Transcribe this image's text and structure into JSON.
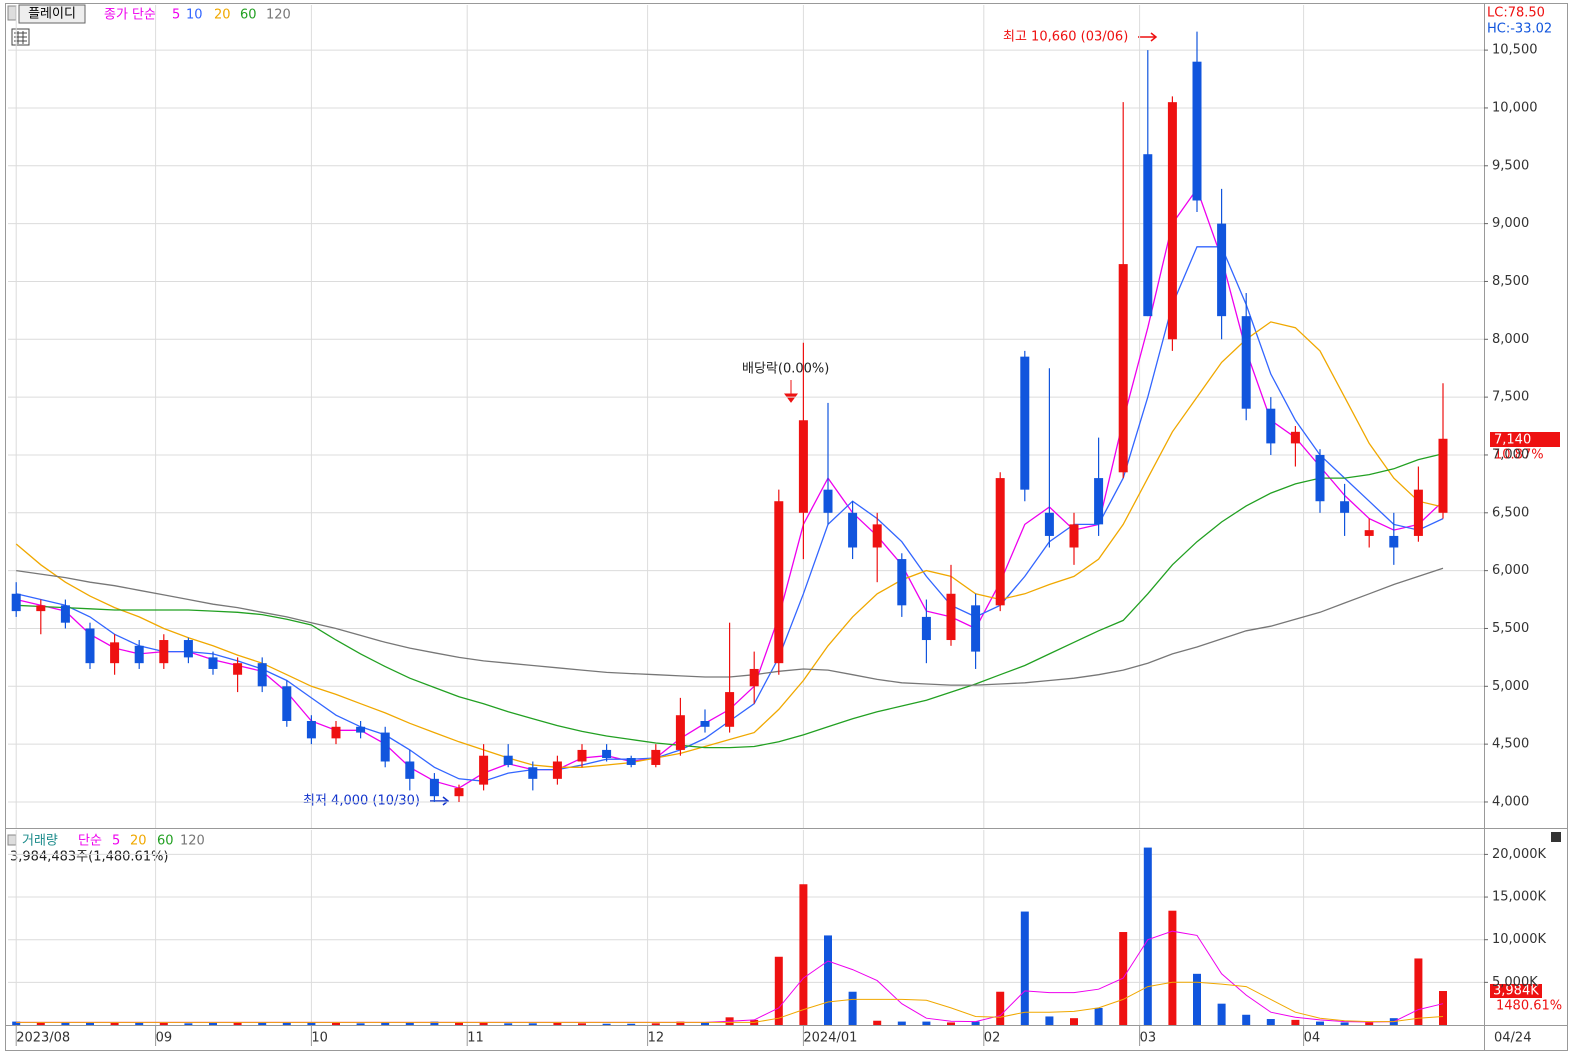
{
  "ui": {
    "stock_button": "플레이디",
    "price_legend_label": "종가 단순",
    "lc": "LC:78.50",
    "hc": "HC:-33.02",
    "last_price": "7,140",
    "last_change": "10.87%",
    "volume_legend_label": "거래량",
    "volume_ma_label": "단순",
    "volume_extra_ma": [
      "60",
      "120"
    ],
    "volume_info": "3,984,483주(1,480.61%)",
    "last_volume": "3,984K",
    "volume_ratio": "1480.61%",
    "last_date": "04/24",
    "annotations": {
      "high": "최고 10,660 (03/06)",
      "low": "최저 4,000 (10/30)",
      "dividend": "배당락(0.00%)"
    }
  },
  "chart_data": [
    {
      "type": "candlestick",
      "x": [
        0,
        3,
        6,
        9,
        12,
        15,
        18,
        21,
        24,
        27,
        30,
        33,
        36,
        39,
        42,
        45,
        48,
        51,
        54,
        57,
        60,
        63,
        66,
        69,
        72,
        75,
        78,
        81,
        84,
        87,
        90,
        93,
        96,
        99,
        102,
        105,
        108,
        111,
        114,
        117,
        120,
        123,
        126,
        129,
        132,
        135,
        138,
        141,
        144,
        147,
        150,
        153,
        156,
        159,
        162,
        165,
        168,
        171,
        174
      ],
      "open": [
        5800,
        5650,
        5700,
        5500,
        5200,
        5350,
        5200,
        5400,
        5250,
        5100,
        5200,
        5000,
        4700,
        4550,
        4650,
        4600,
        4350,
        4200,
        4050,
        4150,
        4400,
        4300,
        4200,
        4350,
        4450,
        4380,
        4320,
        4450,
        4700,
        4650,
        5000,
        5200,
        6500,
        6700,
        6500,
        6200,
        6100,
        5600,
        5400,
        5700,
        5700,
        7850,
        6500,
        6200,
        6800,
        6850,
        9600,
        8000,
        10400,
        9000,
        8200,
        7400,
        7100,
        7000,
        6600,
        6300,
        6300,
        6300,
        6500
      ],
      "high": [
        5900,
        5750,
        5750,
        5550,
        5450,
        5400,
        5450,
        5420,
        5300,
        5250,
        5250,
        5050,
        4750,
        4700,
        4700,
        4650,
        4450,
        4250,
        4150,
        4500,
        4500,
        4350,
        4400,
        4500,
        4500,
        4400,
        4500,
        4900,
        4800,
        5550,
        5300,
        6700,
        7970,
        7450,
        6600,
        6500,
        6150,
        5750,
        6050,
        5800,
        6850,
        7900,
        7750,
        6500,
        7150,
        10050,
        10500,
        10100,
        10660,
        9300,
        8400,
        7500,
        7250,
        7050,
        6750,
        6450,
        6500,
        6900,
        7620
      ],
      "low": [
        5600,
        5450,
        5500,
        5150,
        5100,
        5150,
        5150,
        5200,
        5100,
        4950,
        4950,
        4650,
        4500,
        4500,
        4550,
        4300,
        4100,
        4000,
        4000,
        4100,
        4300,
        4100,
        4150,
        4300,
        4350,
        4300,
        4300,
        4400,
        4600,
        4600,
        4850,
        5100,
        6100,
        6400,
        6100,
        5900,
        5600,
        5200,
        5350,
        5150,
        5650,
        6600,
        6200,
        6050,
        6300,
        6800,
        8200,
        7900,
        9100,
        8000,
        7300,
        7000,
        6900,
        6500,
        6300,
        6200,
        6050,
        6250,
        6450
      ],
      "close": [
        5650,
        5700,
        5550,
        5200,
        5380,
        5200,
        5400,
        5250,
        5150,
        5200,
        5000,
        4700,
        4550,
        4650,
        4600,
        4350,
        4200,
        4050,
        4120,
        4400,
        4320,
        4200,
        4350,
        4450,
        4380,
        4320,
        4450,
        4750,
        4650,
        4950,
        5150,
        6600,
        7300,
        6500,
        6200,
        6400,
        5700,
        5400,
        5800,
        5300,
        6800,
        6700,
        6300,
        6400,
        6400,
        8650,
        8200,
        10050,
        9200,
        8200,
        7400,
        7100,
        7200,
        6600,
        6500,
        6350,
        6200,
        6700,
        7140
      ],
      "up_color": "#ee1111",
      "down_color": "#1155dd",
      "series": [
        {
          "name": "5",
          "color": "#ee00ee",
          "values": [
            5750,
            5700,
            5650,
            5450,
            5330,
            5280,
            5300,
            5300,
            5230,
            5180,
            5130,
            4950,
            4700,
            4620,
            4620,
            4500,
            4300,
            4180,
            4120,
            4250,
            4330,
            4280,
            4280,
            4380,
            4400,
            4350,
            4380,
            4550,
            4680,
            4800,
            5000,
            5600,
            6400,
            6800,
            6500,
            6300,
            6050,
            5650,
            5600,
            5500,
            5900,
            6400,
            6550,
            6350,
            6400,
            7300,
            8100,
            9000,
            9300,
            8700,
            7900,
            7300,
            7150,
            6900,
            6650,
            6450,
            6350,
            6400,
            6600
          ]
        },
        {
          "name": "10",
          "color": "#3366ff",
          "values": [
            5800,
            5750,
            5700,
            5600,
            5450,
            5350,
            5300,
            5300,
            5280,
            5220,
            5150,
            5050,
            4900,
            4750,
            4650,
            4580,
            4450,
            4300,
            4200,
            4180,
            4250,
            4280,
            4280,
            4320,
            4370,
            4370,
            4380,
            4450,
            4550,
            4700,
            4850,
            5250,
            5800,
            6400,
            6600,
            6450,
            6250,
            5950,
            5700,
            5600,
            5700,
            5950,
            6250,
            6400,
            6400,
            6800,
            7500,
            8300,
            8800,
            8800,
            8300,
            7700,
            7300,
            7000,
            6800,
            6600,
            6400,
            6350,
            6450
          ]
        },
        {
          "name": "20",
          "color": "#f0a800",
          "values": [
            6230,
            6050,
            5900,
            5780,
            5680,
            5600,
            5500,
            5420,
            5350,
            5270,
            5200,
            5100,
            5000,
            4930,
            4850,
            4770,
            4680,
            4600,
            4520,
            4450,
            4380,
            4320,
            4300,
            4300,
            4320,
            4340,
            4380,
            4420,
            4480,
            4540,
            4600,
            4800,
            5050,
            5350,
            5600,
            5800,
            5920,
            6000,
            5950,
            5800,
            5750,
            5800,
            5880,
            5950,
            6100,
            6400,
            6800,
            7200,
            7500,
            7800,
            8000,
            8150,
            8100,
            7900,
            7500,
            7100,
            6800,
            6600,
            6550
          ]
        },
        {
          "name": "60",
          "color": "#22a022",
          "values": [
            5700,
            5690,
            5680,
            5670,
            5660,
            5660,
            5660,
            5660,
            5650,
            5640,
            5620,
            5580,
            5530,
            5400,
            5280,
            5170,
            5070,
            4990,
            4910,
            4850,
            4780,
            4720,
            4660,
            4610,
            4570,
            4540,
            4510,
            4490,
            4470,
            4470,
            4480,
            4520,
            4580,
            4650,
            4720,
            4780,
            4830,
            4880,
            4950,
            5020,
            5100,
            5180,
            5280,
            5380,
            5480,
            5570,
            5800,
            6050,
            6250,
            6420,
            6560,
            6670,
            6750,
            6800,
            6800,
            6830,
            6880,
            6960,
            7010
          ]
        },
        {
          "name": "120",
          "color": "#777777",
          "values": [
            6000,
            5970,
            5940,
            5900,
            5870,
            5830,
            5790,
            5750,
            5710,
            5680,
            5640,
            5600,
            5550,
            5500,
            5440,
            5380,
            5330,
            5290,
            5250,
            5220,
            5200,
            5180,
            5160,
            5140,
            5120,
            5110,
            5100,
            5090,
            5080,
            5080,
            5100,
            5130,
            5150,
            5140,
            5100,
            5060,
            5030,
            5020,
            5010,
            5010,
            5020,
            5030,
            5050,
            5070,
            5100,
            5140,
            5200,
            5280,
            5340,
            5410,
            5480,
            5520,
            5580,
            5640,
            5720,
            5800,
            5880,
            5950,
            6020
          ]
        }
      ],
      "xlim": [
        -1,
        179
      ],
      "xticks": [
        {
          "value": 0,
          "label": "2023/08"
        },
        {
          "value": 17,
          "label": "09"
        },
        {
          "value": 36,
          "label": "10"
        },
        {
          "value": 55,
          "label": "11"
        },
        {
          "value": 77,
          "label": "12"
        },
        {
          "value": 96,
          "label": "2024/01"
        },
        {
          "value": 118,
          "label": "02"
        },
        {
          "value": 137,
          "label": "03"
        },
        {
          "value": 157,
          "label": "04"
        }
      ],
      "ylim": [
        3775,
        10890
      ],
      "yticks": [
        {
          "value": 4000,
          "label": "4,000"
        },
        {
          "value": 4500,
          "label": "4,500"
        },
        {
          "value": 5000,
          "label": "5,000"
        },
        {
          "value": 5500,
          "label": "5,500"
        },
        {
          "value": 6000,
          "label": "6,000"
        },
        {
          "value": 6500,
          "label": "6,500"
        },
        {
          "value": 7000,
          "label": "7,000"
        },
        {
          "value": 7500,
          "label": "7,500"
        },
        {
          "value": 8000,
          "label": "8,000"
        },
        {
          "value": 8500,
          "label": "8,500"
        },
        {
          "value": 9000,
          "label": "9,000"
        },
        {
          "value": 9500,
          "label": "9,500"
        },
        {
          "value": 10000,
          "label": "10,000"
        },
        {
          "value": 10500,
          "label": "10,500"
        }
      ],
      "grid": true
    },
    {
      "type": "bar",
      "values": [
        400,
        350,
        300,
        300,
        250,
        300,
        250,
        200,
        250,
        300,
        300,
        350,
        300,
        250,
        200,
        300,
        350,
        400,
        300,
        300,
        200,
        200,
        250,
        200,
        150,
        150,
        200,
        400,
        300,
        900,
        600,
        8000,
        16500,
        10500,
        3900,
        500,
        400,
        400,
        300,
        400,
        3900,
        13300,
        1000,
        800,
        2000,
        10900,
        20800,
        13400,
        6000,
        2500,
        1200,
        700,
        600,
        400,
        300,
        300,
        800,
        7800,
        3984
      ],
      "series": [
        {
          "name": "5",
          "color": "#ee00ee",
          "values": [
            300,
            300,
            300,
            300,
            300,
            300,
            300,
            300,
            300,
            300,
            300,
            300,
            300,
            300,
            300,
            300,
            300,
            300,
            300,
            300,
            300,
            300,
            300,
            300,
            300,
            300,
            300,
            300,
            300,
            450,
            600,
            2000,
            5500,
            7500,
            6500,
            5200,
            2500,
            800,
            450,
            400,
            1100,
            4000,
            3800,
            3800,
            4200,
            5500,
            10000,
            11000,
            10500,
            6000,
            3500,
            1500,
            900,
            600,
            400,
            350,
            400,
            1800,
            2500
          ]
        },
        {
          "name": "20",
          "color": "#f0a800",
          "values": [
            300,
            300,
            300,
            300,
            300,
            300,
            300,
            300,
            300,
            300,
            300,
            300,
            300,
            300,
            300,
            300,
            300,
            300,
            300,
            300,
            300,
            300,
            300,
            300,
            300,
            300,
            300,
            300,
            300,
            300,
            300,
            800,
            1800,
            2700,
            3000,
            3000,
            3000,
            2900,
            2000,
            1000,
            900,
            1500,
            1500,
            1600,
            2000,
            3000,
            4500,
            5000,
            5000,
            4800,
            4500,
            3000,
            1500,
            800,
            500,
            400,
            400,
            800,
            1000
          ]
        }
      ],
      "ylim": [
        0,
        22860
      ],
      "yticks": [
        {
          "value": 5000,
          "label": "5,000K"
        },
        {
          "value": 10000,
          "label": "10,000K"
        },
        {
          "value": 15000,
          "label": "15,000K"
        },
        {
          "value": 20000,
          "label": "20,000K"
        }
      ],
      "grid": true
    }
  ]
}
